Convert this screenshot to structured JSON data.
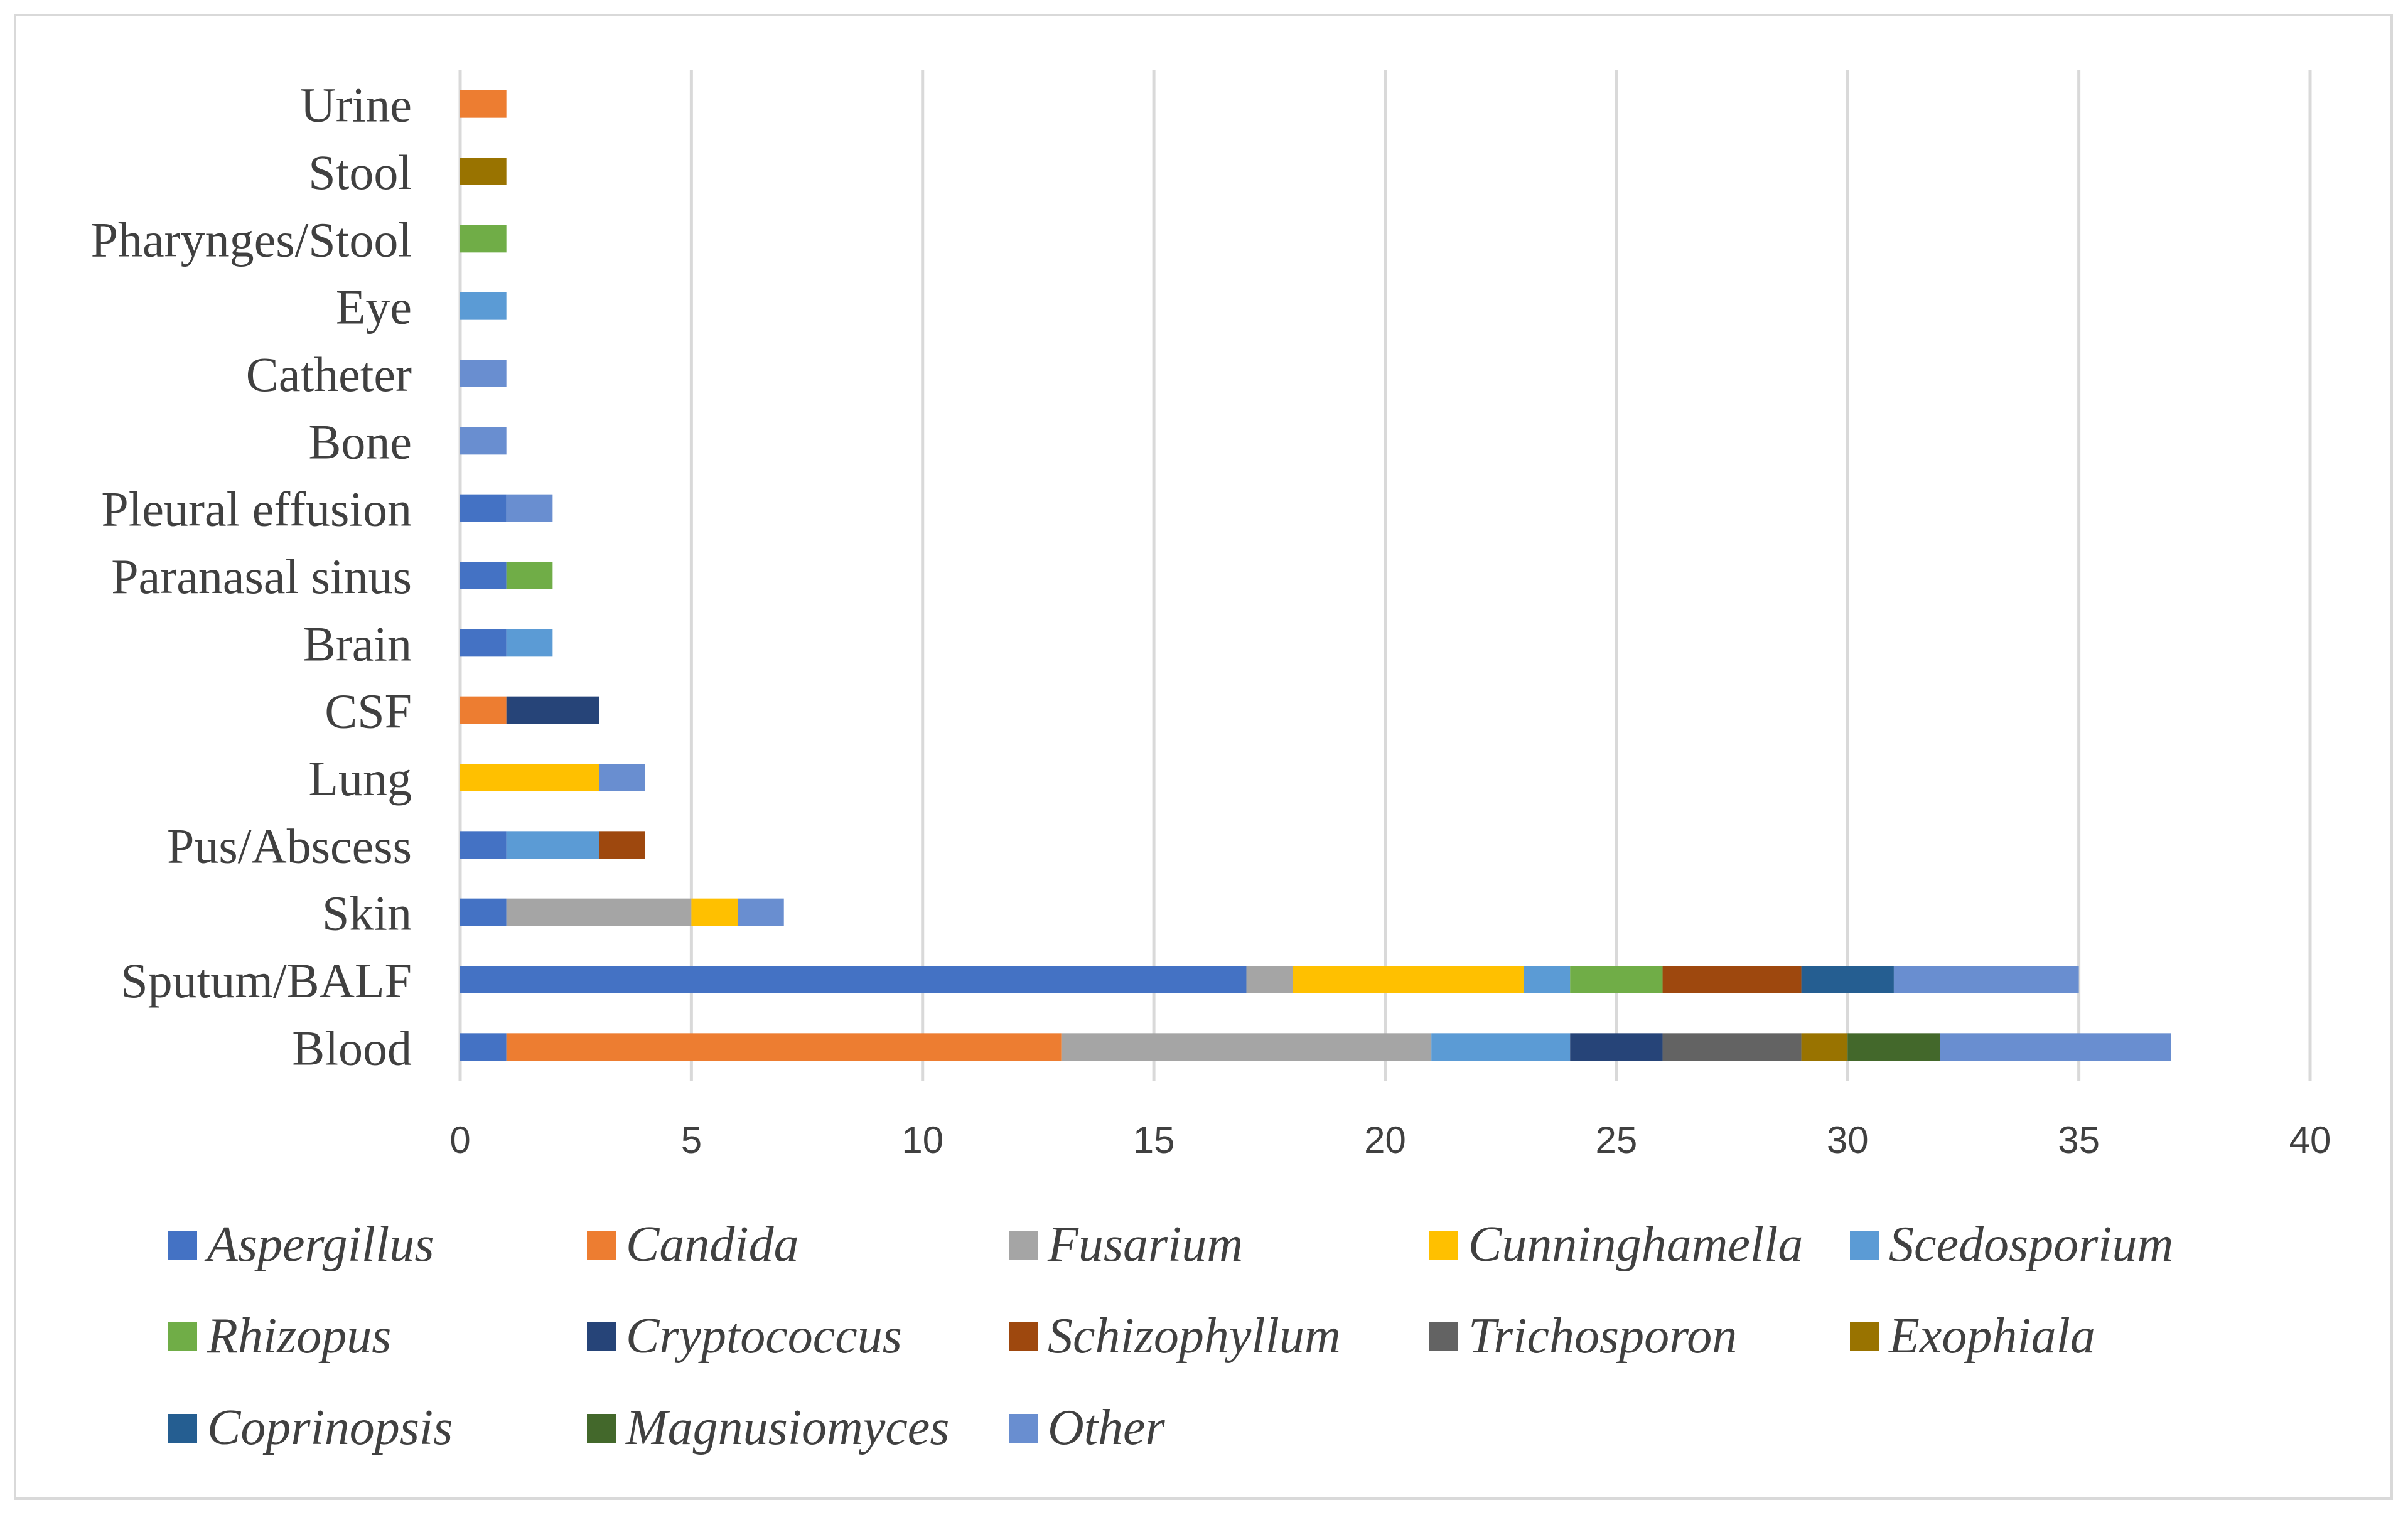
{
  "chart_data": {
    "type": "bar",
    "orientation": "horizontal",
    "stacked": true,
    "title": "",
    "xlabel": "",
    "ylabel": "",
    "xlim": [
      0,
      40
    ],
    "x_ticks": [
      "0",
      "5",
      "10",
      "15",
      "20",
      "25",
      "30",
      "35",
      "40"
    ],
    "grid": "vertical",
    "legend_position": "bottom",
    "categories": [
      "Blood",
      "Sputum/BALF",
      "Skin",
      "Pus/Abscess",
      "Lung",
      "CSF",
      "Brain",
      "Paranasal sinus",
      "Pleural effusion",
      "Bone",
      "Catheter",
      "Eye",
      "Pharynges/Stool",
      "Stool",
      "Urine"
    ],
    "series": [
      {
        "name": "Aspergillus",
        "color": "#4472C4",
        "values": [
          1,
          17,
          1,
          1,
          0,
          0,
          1,
          1,
          1,
          0,
          0,
          0,
          0,
          0,
          0
        ]
      },
      {
        "name": "Candida",
        "color": "#ED7D31",
        "values": [
          12,
          0,
          0,
          0,
          0,
          1,
          0,
          0,
          0,
          0,
          0,
          0,
          0,
          0,
          1
        ]
      },
      {
        "name": "Fusarium",
        "color": "#A5A5A5",
        "values": [
          8,
          1,
          4,
          0,
          0,
          0,
          0,
          0,
          0,
          0,
          0,
          0,
          0,
          0,
          0
        ]
      },
      {
        "name": "Cunninghamella",
        "color": "#FFC000",
        "values": [
          0,
          5,
          1,
          0,
          3,
          0,
          0,
          0,
          0,
          0,
          0,
          0,
          0,
          0,
          0
        ]
      },
      {
        "name": "Scedosporium",
        "color": "#5B9BD5",
        "values": [
          3,
          1,
          0,
          2,
          0,
          0,
          1,
          0,
          0,
          0,
          0,
          1,
          0,
          0,
          0
        ]
      },
      {
        "name": "Rhizopus",
        "color": "#70AD47",
        "values": [
          0,
          2,
          0,
          0,
          0,
          0,
          0,
          1,
          0,
          0,
          0,
          0,
          1,
          0,
          0
        ]
      },
      {
        "name": "Cryptococcus",
        "color": "#264478",
        "values": [
          2,
          0,
          0,
          0,
          0,
          2,
          0,
          0,
          0,
          0,
          0,
          0,
          0,
          0,
          0
        ]
      },
      {
        "name": "Schizophyllum",
        "color": "#9E480E",
        "values": [
          0,
          3,
          0,
          1,
          0,
          0,
          0,
          0,
          0,
          0,
          0,
          0,
          0,
          0,
          0
        ]
      },
      {
        "name": "Trichosporon",
        "color": "#636363",
        "values": [
          3,
          0,
          0,
          0,
          0,
          0,
          0,
          0,
          0,
          0,
          0,
          0,
          0,
          0,
          0
        ]
      },
      {
        "name": "Exophiala",
        "color": "#997300",
        "values": [
          1,
          0,
          0,
          0,
          0,
          0,
          0,
          0,
          0,
          0,
          0,
          0,
          0,
          1,
          0
        ]
      },
      {
        "name": "Coprinopsis",
        "color": "#255E91",
        "values": [
          0,
          2,
          0,
          0,
          0,
          0,
          0,
          0,
          0,
          0,
          0,
          0,
          0,
          0,
          0
        ]
      },
      {
        "name": "Magnusiomyces",
        "color": "#43682B",
        "values": [
          2,
          0,
          0,
          0,
          0,
          0,
          0,
          0,
          0,
          0,
          0,
          0,
          0,
          0,
          0
        ]
      },
      {
        "name": "Other",
        "color": "#698ED0",
        "values": [
          5,
          4,
          1,
          0,
          1,
          0,
          0,
          0,
          1,
          1,
          1,
          0,
          0,
          0,
          0
        ]
      }
    ]
  }
}
